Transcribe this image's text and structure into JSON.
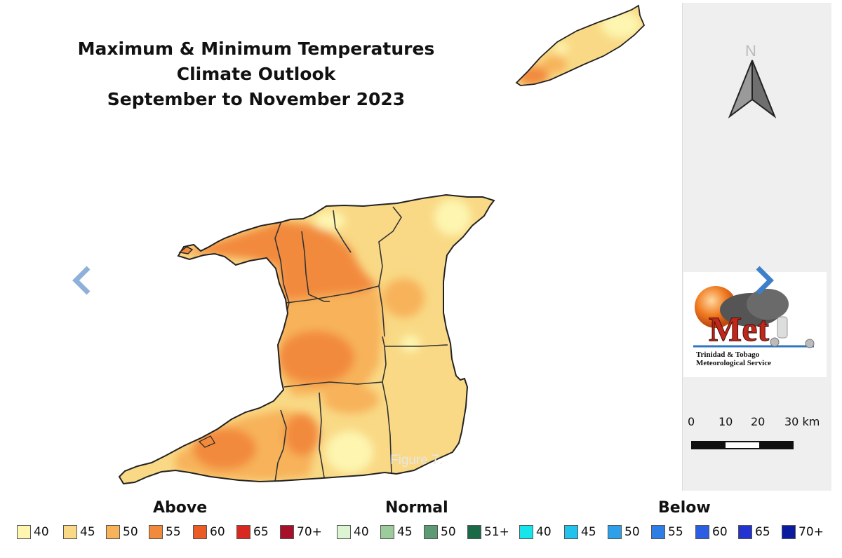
{
  "title": {
    "line1": "Maximum & Minimum Temperatures",
    "line2": "Climate Outlook",
    "line3": "September to November 2023"
  },
  "north_arrow": {
    "letter": "N",
    "icon": "north-arrow-icon"
  },
  "logo": {
    "mark": "Met",
    "line1": "Trinidad & Tobago",
    "line2": "Meteorological Service"
  },
  "scale": {
    "labels": [
      "0",
      "10",
      "20",
      "30 km"
    ]
  },
  "caption": "Figure 7.",
  "nav": {
    "prev_icon": "chevron-left-icon",
    "next_icon": "chevron-right-icon"
  },
  "legend": {
    "above_title": "Above",
    "normal_title": "Normal",
    "below_title": "Below",
    "above": [
      {
        "label": "40",
        "color": "#fdf5b0"
      },
      {
        "label": "45",
        "color": "#f9d985"
      },
      {
        "label": "50",
        "color": "#f7b25a"
      },
      {
        "label": "55",
        "color": "#f28a3e"
      },
      {
        "label": "60",
        "color": "#ec5a25"
      },
      {
        "label": "65",
        "color": "#d9281f"
      },
      {
        "label": "70+",
        "color": "#a8102a"
      }
    ],
    "normal": [
      {
        "label": "40",
        "color": "#dcf4d2"
      },
      {
        "label": "45",
        "color": "#9ccb9c"
      },
      {
        "label": "50",
        "color": "#5b9a73"
      },
      {
        "label": "51+",
        "color": "#1a6a48"
      }
    ],
    "below": [
      {
        "label": "40",
        "color": "#16e6ec"
      },
      {
        "label": "45",
        "color": "#22c2ec"
      },
      {
        "label": "50",
        "color": "#2ea0ea"
      },
      {
        "label": "55",
        "color": "#2f7ee6"
      },
      {
        "label": "60",
        "color": "#2b5ee2"
      },
      {
        "label": "65",
        "color": "#2333cf"
      },
      {
        "label": "70+",
        "color": "#0b1ba0"
      }
    ]
  }
}
